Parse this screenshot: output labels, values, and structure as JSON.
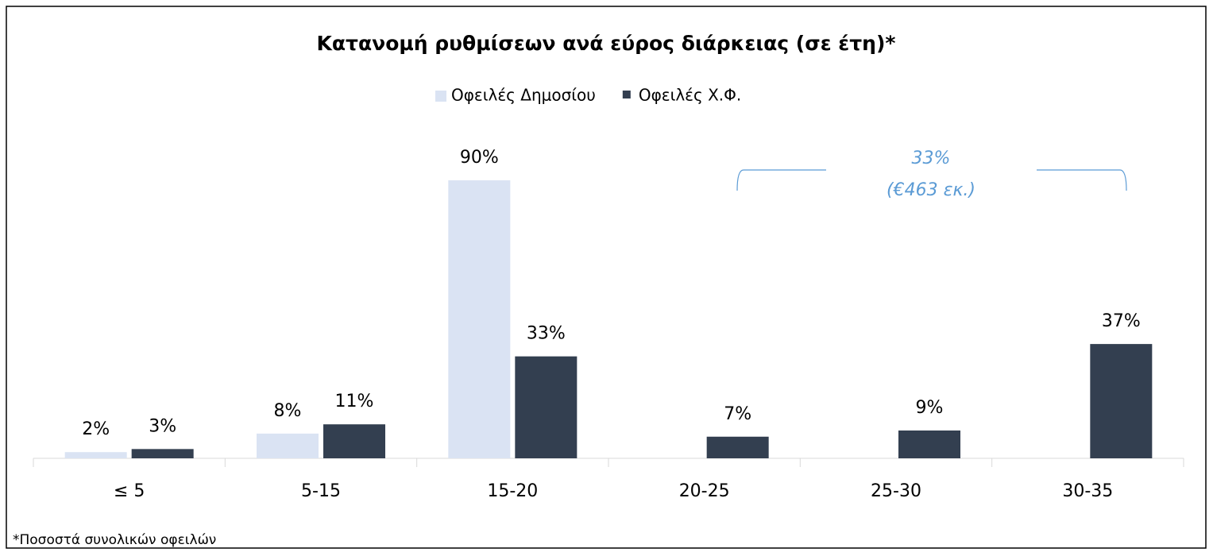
{
  "chart_data": {
    "type": "bar",
    "title": "Κατανομή ρυθμίσεων ανά εύρος διάρκειας (σε έτη)*",
    "categories": [
      "≤ 5",
      "5-15",
      "15-20",
      "20-25",
      "25-30",
      "30-35"
    ],
    "series": [
      {
        "name": "Οφειλές Δημοσίου",
        "color": "#dae3f3",
        "values": [
          2,
          8,
          90,
          null,
          null,
          null
        ],
        "value_labels": [
          "2%",
          "8%",
          "90%",
          null,
          null,
          null
        ]
      },
      {
        "name": "Οφειλές Χ.Φ.",
        "color": "#333f50",
        "values": [
          3,
          11,
          33,
          7,
          9,
          37
        ],
        "value_labels": [
          "3%",
          "11%",
          "33%",
          "7%",
          "9%",
          "37%"
        ]
      }
    ],
    "ylim": [
      0,
      90
    ],
    "annotations": [
      "33%",
      "(€463 εκ.)"
    ],
    "footnote": "*Ποσοστά συνολικών οφειλών"
  }
}
